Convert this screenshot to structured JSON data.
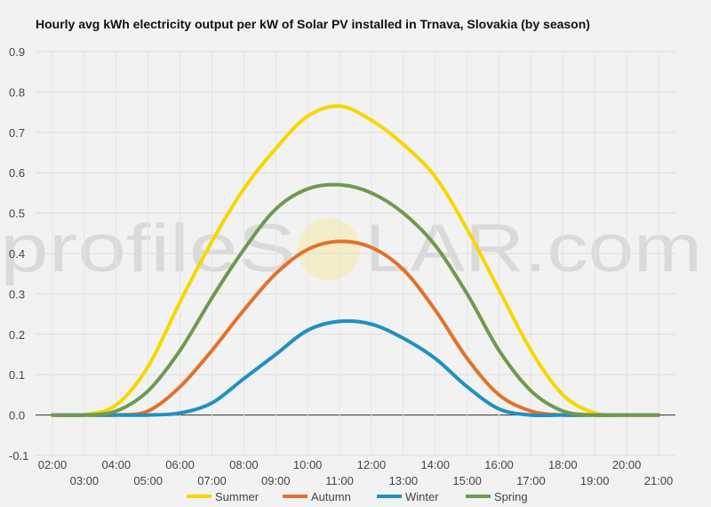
{
  "chart_data": {
    "type": "line",
    "title": "Hourly avg kWh electricity output per kW of Solar PV installed in Trnava, Slovakia (by season)",
    "xlabel": "",
    "ylabel": "",
    "ylim": [
      -0.1,
      0.9
    ],
    "yticks": [
      "-0.1",
      "0.0",
      "0.1",
      "0.2",
      "0.3",
      "0.4",
      "0.5",
      "0.6",
      "0.7",
      "0.8",
      "0.9"
    ],
    "x": [
      "02:00",
      "03:00",
      "04:00",
      "05:00",
      "06:00",
      "07:00",
      "08:00",
      "09:00",
      "10:00",
      "11:00",
      "12:00",
      "13:00",
      "14:00",
      "15:00",
      "16:00",
      "17:00",
      "18:00",
      "19:00",
      "20:00",
      "21:00"
    ],
    "grid": true,
    "legend": "bottom",
    "watermark": {
      "left": "profileS",
      "right": "LAR.com"
    },
    "series": [
      {
        "name": "Summer",
        "color": "#f5d800",
        "values": [
          0,
          0.001,
          0.025,
          0.12,
          0.28,
          0.43,
          0.56,
          0.66,
          0.74,
          0.765,
          0.73,
          0.67,
          0.59,
          0.46,
          0.31,
          0.16,
          0.05,
          0.005,
          0,
          0
        ]
      },
      {
        "name": "Autumn",
        "color": "#e1712b",
        "values": [
          0,
          0,
          0,
          0.01,
          0.07,
          0.16,
          0.26,
          0.35,
          0.41,
          0.43,
          0.415,
          0.36,
          0.26,
          0.14,
          0.05,
          0.01,
          0,
          0,
          0,
          0
        ]
      },
      {
        "name": "Winter",
        "color": "#2090c0",
        "values": [
          0,
          0,
          0,
          0,
          0.005,
          0.03,
          0.09,
          0.15,
          0.21,
          0.232,
          0.225,
          0.19,
          0.14,
          0.07,
          0.015,
          0,
          0,
          0,
          0,
          0
        ]
      },
      {
        "name": "Spring",
        "color": "#6e9a50",
        "values": [
          0,
          0,
          0.01,
          0.06,
          0.16,
          0.29,
          0.41,
          0.51,
          0.56,
          0.57,
          0.55,
          0.5,
          0.42,
          0.3,
          0.16,
          0.06,
          0.01,
          0,
          0,
          0
        ]
      }
    ]
  }
}
